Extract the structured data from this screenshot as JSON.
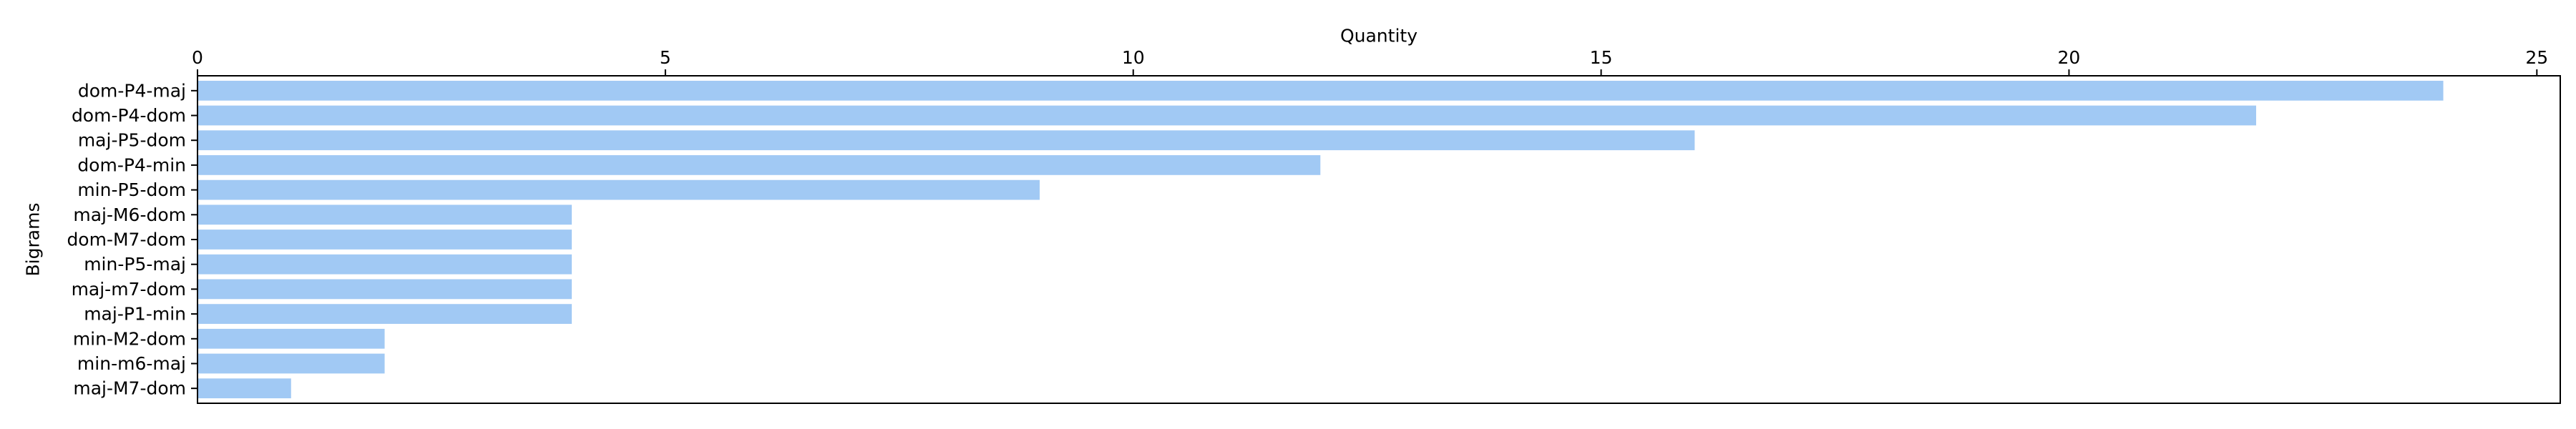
{
  "chart_data": {
    "type": "bar",
    "orientation": "horizontal",
    "title": "",
    "xlabel": "Quantity",
    "ylabel": "Bigrams",
    "xaxis_position": "top",
    "xlim": [
      0,
      25.25
    ],
    "xticks": [
      0,
      5,
      10,
      15,
      20,
      25
    ],
    "grid": false,
    "legend": "none",
    "bar_color": "#a1c9f4",
    "categories": [
      "dom-P4-maj",
      "dom-P4-dom",
      "maj-P5-dom",
      "dom-P4-min",
      "min-P5-dom",
      "maj-M6-dom",
      "dom-M7-dom",
      "min-P5-maj",
      "maj-m7-dom",
      "maj-P1-min",
      "min-M2-dom",
      "min-m6-maj",
      "maj-M7-dom"
    ],
    "values": [
      24,
      22,
      16,
      12,
      9,
      4,
      4,
      4,
      4,
      4,
      2,
      2,
      1
    ]
  }
}
